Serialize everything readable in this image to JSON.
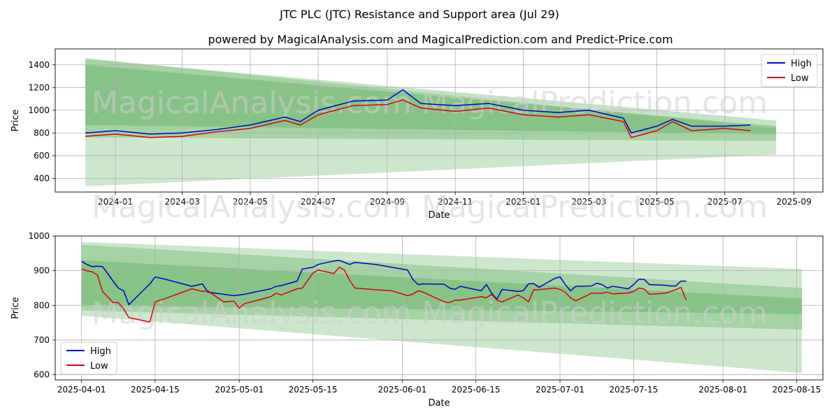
{
  "figure": {
    "title": "JTC PLC (JTC) Resistance and Support area (Jul 29)",
    "subtitle": "powered by MagicalAnalysis.com and MagicalPrediction.com and Predict-Price.com",
    "watermarks": [
      "MagicalAnalysis.com",
      "MagicalPrediction.com"
    ],
    "colors": {
      "high": "#0000cc",
      "low": "#dd0000",
      "band": "#5aaf5a",
      "grid": "#b0b0b0"
    }
  },
  "chart_data": [
    {
      "type": "line",
      "xlabel": "Date",
      "ylabel": "Price",
      "x_ticks": [
        "2024-01",
        "2024-03",
        "2024-05",
        "2024-07",
        "2024-09",
        "2024-11",
        "2025-01",
        "2025-03",
        "2025-05",
        "2025-07",
        "2025-09"
      ],
      "y_ticks": [
        400,
        600,
        800,
        1000,
        1200,
        1400
      ],
      "xlim": [
        "2023-11-08",
        "2025-09-27"
      ],
      "ylim": [
        280,
        1540
      ],
      "grid": true,
      "legend_position": "top-right",
      "x": [
        "2023-12-05",
        "2024-01-01",
        "2024-02-01",
        "2024-03-01",
        "2024-04-01",
        "2024-05-01",
        "2024-06-01",
        "2024-06-15",
        "2024-07-01",
        "2024-08-01",
        "2024-09-01",
        "2024-09-15",
        "2024-10-01",
        "2024-11-01",
        "2024-12-01",
        "2025-01-01",
        "2025-02-01",
        "2025-03-01",
        "2025-04-01",
        "2025-04-08",
        "2025-05-01",
        "2025-05-15",
        "2025-06-01",
        "2025-07-01",
        "2025-07-24"
      ],
      "series": [
        {
          "name": "High",
          "values": [
            800,
            820,
            790,
            800,
            830,
            870,
            940,
            900,
            1000,
            1080,
            1090,
            1180,
            1060,
            1040,
            1060,
            1000,
            980,
            1000,
            930,
            800,
            860,
            920,
            860,
            860,
            870
          ]
        },
        {
          "name": "Low",
          "values": [
            770,
            790,
            760,
            770,
            810,
            840,
            910,
            870,
            960,
            1040,
            1050,
            1090,
            1020,
            990,
            1020,
            960,
            940,
            960,
            900,
            760,
            820,
            900,
            820,
            840,
            820
          ]
        }
      ],
      "bands": [
        {
          "x": [
            "2023-12-05",
            "2025-08-16"
          ],
          "upper": [
            1460,
            840
          ],
          "lower": [
            330,
            610
          ]
        },
        {
          "x": [
            "2023-12-05",
            "2025-08-16"
          ],
          "upper": [
            1450,
            910
          ],
          "lower": [
            760,
            730
          ]
        },
        {
          "x": [
            "2023-12-05",
            "2025-08-16"
          ],
          "upper": [
            1400,
            860
          ],
          "lower": [
            870,
            790
          ]
        }
      ]
    },
    {
      "type": "line",
      "xlabel": "Date",
      "ylabel": "Price",
      "x_ticks": [
        "2025-04-01",
        "2025-04-15",
        "2025-05-01",
        "2025-05-15",
        "2025-06-01",
        "2025-06-15",
        "2025-07-01",
        "2025-07-15",
        "2025-08-01",
        "2025-08-15"
      ],
      "y_ticks": [
        600,
        700,
        800,
        900,
        1000
      ],
      "xlim": [
        "2025-03-27",
        "2025-08-20"
      ],
      "ylim": [
        585,
        1000
      ],
      "grid": true,
      "legend_position": "bottom-left",
      "x": [
        "2025-04-01",
        "2025-04-02",
        "2025-04-03",
        "2025-04-04",
        "2025-04-05",
        "2025-04-07",
        "2025-04-08",
        "2025-04-09",
        "2025-04-10",
        "2025-04-14",
        "2025-04-15",
        "2025-04-17",
        "2025-04-22",
        "2025-04-24",
        "2025-04-25",
        "2025-04-28",
        "2025-04-30",
        "2025-05-01",
        "2025-05-02",
        "2025-05-07",
        "2025-05-08",
        "2025-05-09",
        "2025-05-12",
        "2025-05-13",
        "2025-05-15",
        "2025-05-16",
        "2025-05-19",
        "2025-05-20",
        "2025-05-21",
        "2025-05-22",
        "2025-05-23",
        "2025-05-27",
        "2025-05-30",
        "2025-06-02",
        "2025-06-03",
        "2025-06-04",
        "2025-06-05",
        "2025-06-09",
        "2025-06-10",
        "2025-06-11",
        "2025-06-12",
        "2025-06-16",
        "2025-06-17",
        "2025-06-18",
        "2025-06-19",
        "2025-06-20",
        "2025-06-23",
        "2025-06-24",
        "2025-06-25",
        "2025-06-26",
        "2025-06-27",
        "2025-06-30",
        "2025-07-01",
        "2025-07-02",
        "2025-07-03",
        "2025-07-04",
        "2025-07-07",
        "2025-07-08",
        "2025-07-09",
        "2025-07-10",
        "2025-07-11",
        "2025-07-14",
        "2025-07-15",
        "2025-07-16",
        "2025-07-17",
        "2025-07-18",
        "2025-07-21",
        "2025-07-22",
        "2025-07-23",
        "2025-07-24",
        "2025-07-25"
      ],
      "series": [
        {
          "name": "High",
          "values": [
            927,
            918,
            912,
            913,
            912,
            870,
            850,
            842,
            802,
            862,
            882,
            875,
            855,
            862,
            838,
            832,
            828,
            830,
            832,
            848,
            855,
            857,
            870,
            905,
            910,
            918,
            928,
            930,
            924,
            918,
            924,
            918,
            910,
            902,
            875,
            860,
            862,
            861,
            850,
            846,
            855,
            842,
            860,
            835,
            818,
            846,
            840,
            842,
            862,
            863,
            852,
            878,
            882,
            860,
            842,
            855,
            856,
            864,
            860,
            850,
            855,
            848,
            860,
            875,
            875,
            860,
            858,
            856,
            856,
            870,
            870
          ]
        },
        {
          "name": "Low",
          "values": [
            905,
            900,
            897,
            888,
            840,
            808,
            808,
            790,
            765,
            752,
            810,
            820,
            848,
            840,
            842,
            810,
            812,
            792,
            805,
            825,
            835,
            830,
            848,
            850,
            893,
            902,
            892,
            910,
            902,
            872,
            850,
            845,
            842,
            828,
            832,
            842,
            838,
            810,
            808,
            815,
            815,
            825,
            822,
            832,
            815,
            810,
            830,
            822,
            810,
            845,
            845,
            850,
            846,
            838,
            822,
            813,
            835,
            835,
            835,
            838,
            833,
            836,
            840,
            850,
            847,
            832,
            835,
            840,
            845,
            852,
            815
          ]
        }
      ],
      "bands": [
        {
          "x": [
            "2025-04-01",
            "2025-08-16"
          ],
          "upper": [
            983,
            905
          ],
          "lower": [
            770,
            605
          ]
        },
        {
          "x": [
            "2025-04-01",
            "2025-08-16"
          ],
          "upper": [
            975,
            850
          ],
          "lower": [
            785,
            730
          ]
        },
        {
          "x": [
            "2025-04-01",
            "2025-08-16"
          ],
          "upper": [
            930,
            820
          ],
          "lower": [
            800,
            775
          ]
        }
      ]
    }
  ]
}
